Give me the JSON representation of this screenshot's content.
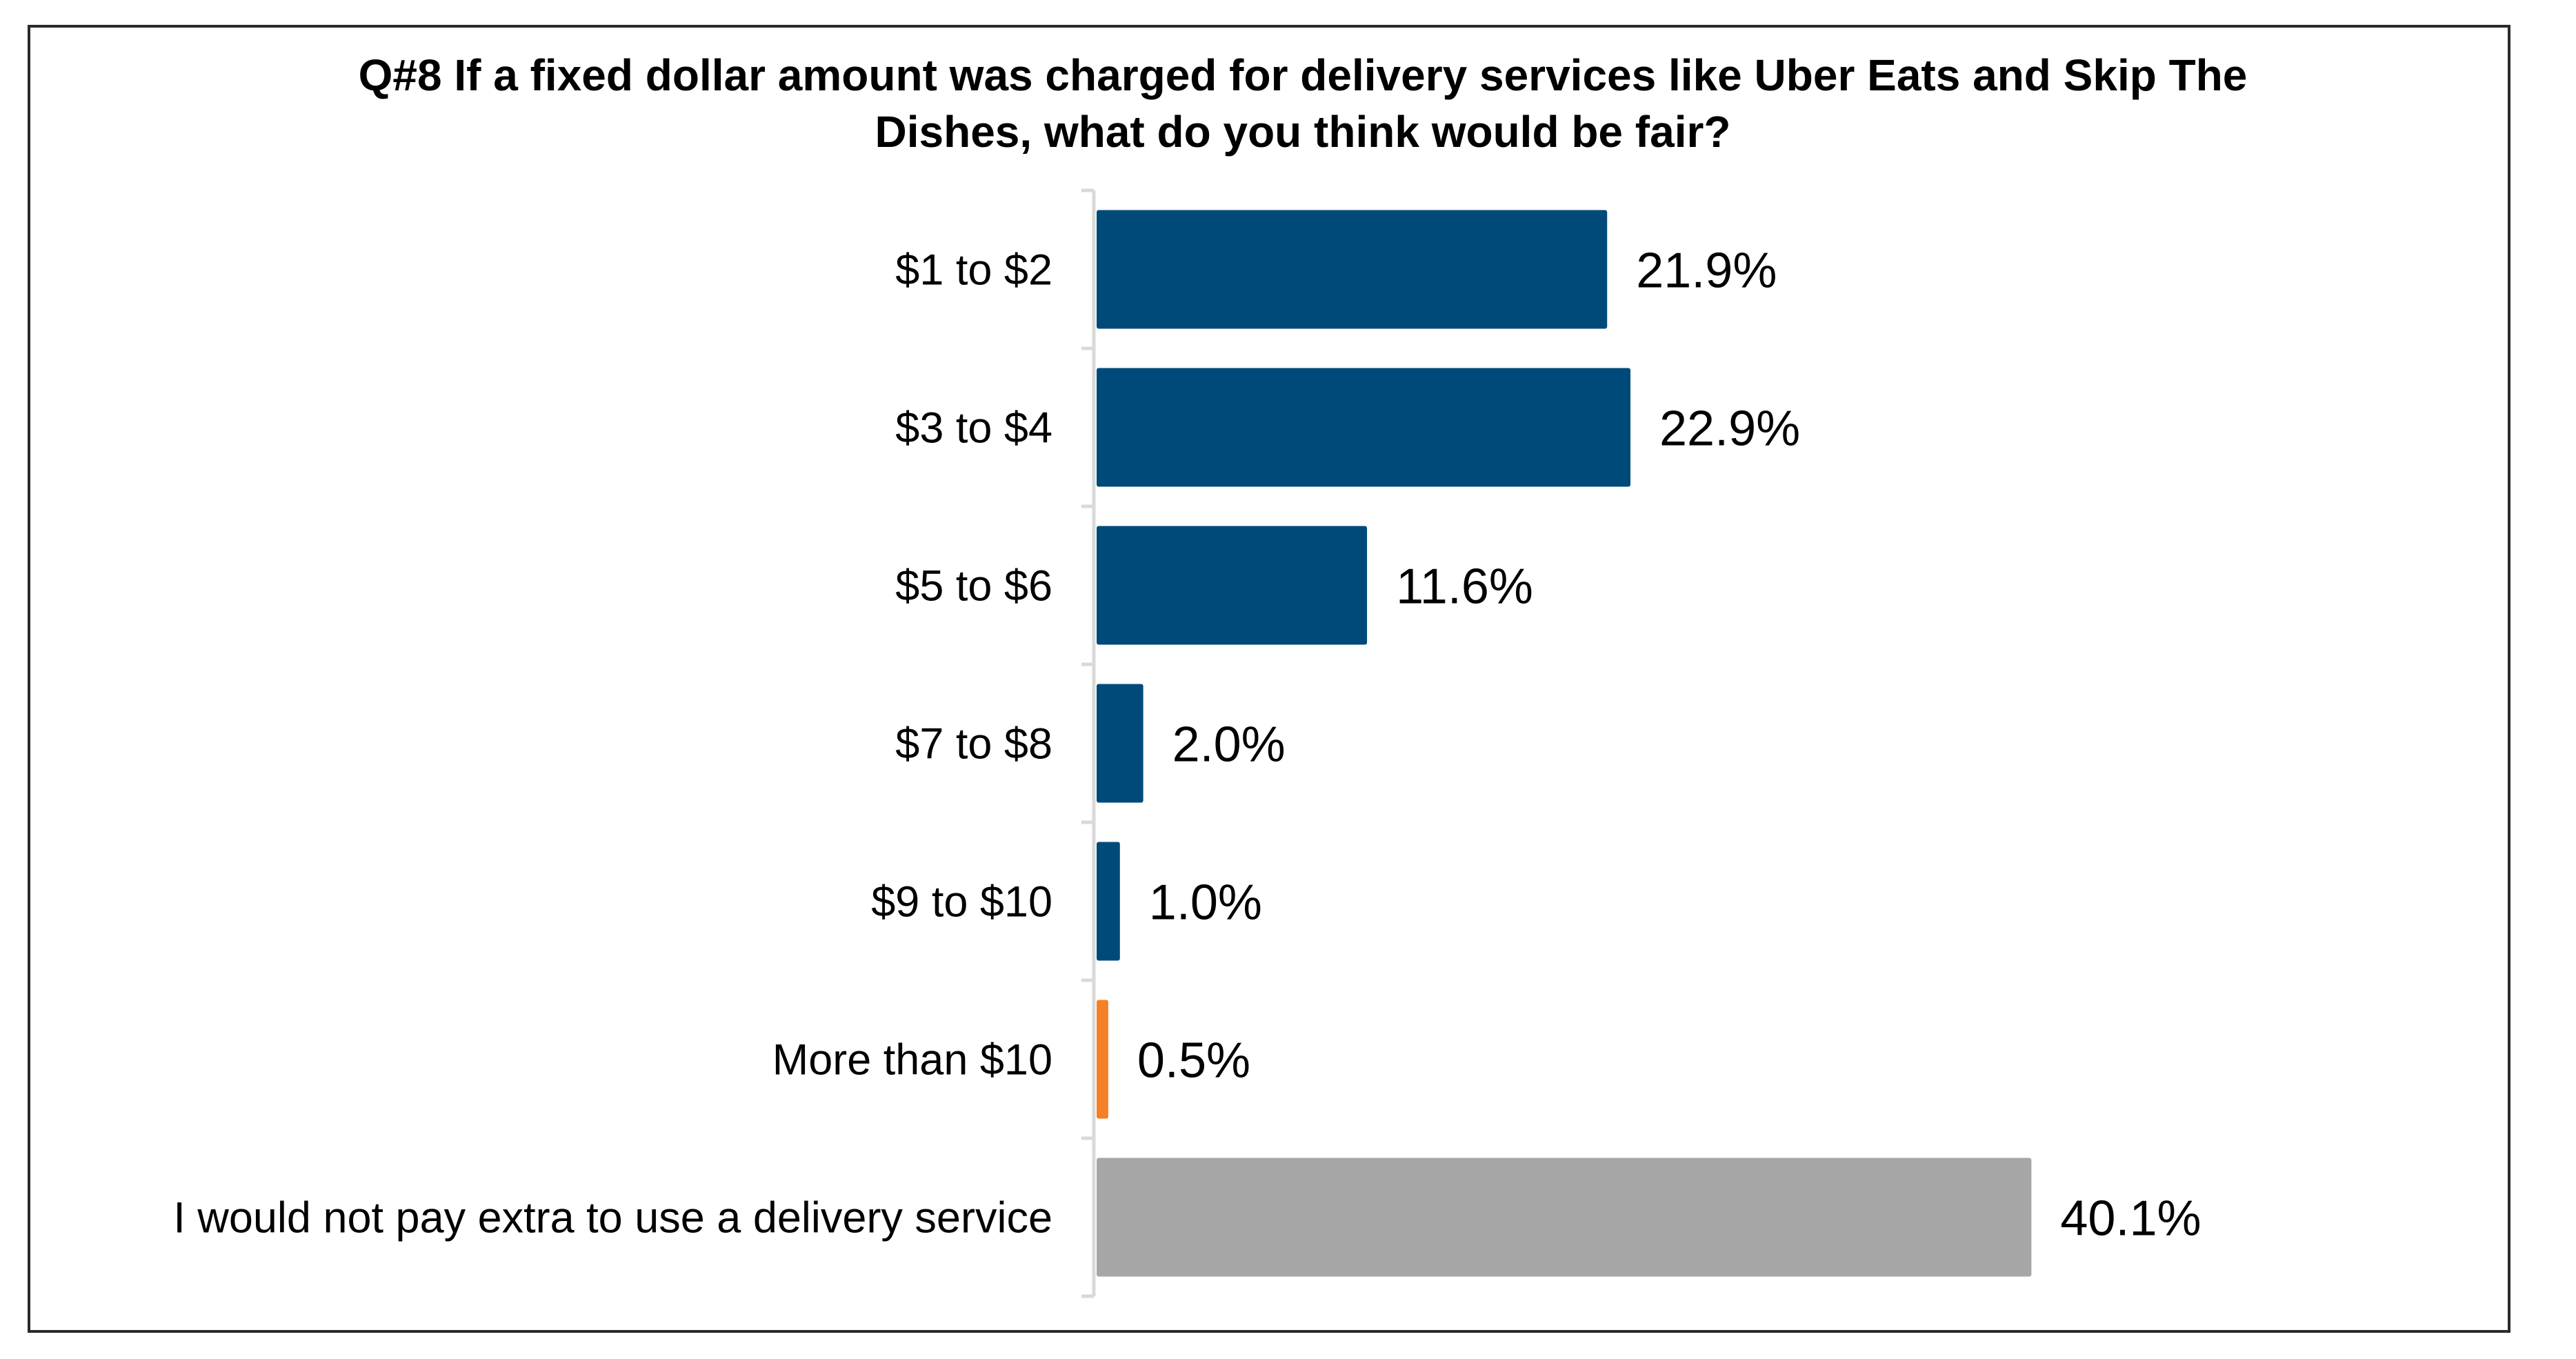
{
  "chart_data": {
    "type": "bar",
    "orientation": "horizontal",
    "title_lines": [
      "Q#8 If a fixed dollar amount was charged for delivery services like Uber Eats and Skip The",
      "Dishes, what do you think would be fair?"
    ],
    "categories": [
      "$1 to $2",
      "$3 to $4",
      "$5 to $6",
      "$7 to $8",
      "$9 to $10",
      "More than $10",
      "I would not pay extra to use a delivery service"
    ],
    "values": [
      21.9,
      22.9,
      11.6,
      2.0,
      1.0,
      0.5,
      40.1
    ],
    "value_labels": [
      "21.9%",
      "22.9%",
      "11.6%",
      "2.0%",
      "1.0%",
      "0.5%",
      "40.1%"
    ],
    "bar_colors": [
      "#004A7A",
      "#004A7A",
      "#004A7A",
      "#004A7A",
      "#004A7A",
      "#F58025",
      "#A6A6A6"
    ],
    "unit": "%",
    "xlim": [
      0,
      70
    ],
    "xlabel": "",
    "ylabel": "",
    "grid": false,
    "legend": "none"
  }
}
